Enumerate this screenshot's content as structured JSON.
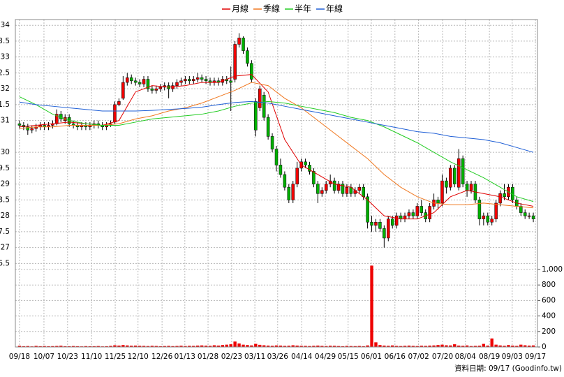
{
  "chart_data": {
    "type": "candlestick",
    "xlim": [
      -1,
      125
    ],
    "ylim": [
      23.87,
      34.18
    ],
    "y2lim": [
      0,
      4225
    ],
    "grid": true,
    "up_color": "#ee0000",
    "down_color": "#00b000",
    "yticks": [
      34,
      {
        "value": 33.5,
        "label": "3.5"
      },
      33,
      {
        "value": 32.5,
        "label": "2.5"
      },
      32,
      {
        "value": 31.5,
        "label": "1.5"
      },
      31,
      30,
      {
        "value": 29.5,
        "label": "9.5"
      },
      29,
      {
        "value": 28.5,
        "label": "8.5"
      },
      28,
      {
        "value": 27.5,
        "label": "7.5"
      },
      27,
      {
        "value": 26.5,
        "label": "6.5"
      }
    ],
    "y2ticks": [
      0,
      200,
      400,
      600,
      800,
      {
        "value": 1000,
        "label": "1,000"
      }
    ],
    "xticks": [
      {
        "value": 0,
        "label": "09/18"
      },
      {
        "value": 5.9,
        "label": "10/07"
      },
      {
        "value": 11.6,
        "label": "10/23"
      },
      {
        "value": 17.4,
        "label": "11/10"
      },
      {
        "value": 23.1,
        "label": "11/25"
      },
      {
        "value": 28.6,
        "label": "12/10"
      },
      {
        "value": 34.4,
        "label": "12/26"
      },
      {
        "value": 39.9,
        "label": "01/13"
      },
      {
        "value": 45.5,
        "label": "01/28"
      },
      {
        "value": 51.2,
        "label": "02/23"
      },
      {
        "value": 56.8,
        "label": "03/11"
      },
      {
        "value": 62.3,
        "label": "03/26"
      },
      {
        "value": 68.1,
        "label": "04/14"
      },
      {
        "value": 73.8,
        "label": "04/29"
      },
      {
        "value": 79.3,
        "label": "05/15"
      },
      {
        "value": 84.9,
        "label": "06/01"
      },
      {
        "value": 90.6,
        "label": "06/16"
      },
      {
        "value": 96.3,
        "label": "07/02"
      },
      {
        "value": 102.1,
        "label": "07/20"
      },
      {
        "value": 107.6,
        "label": "08/04"
      },
      {
        "value": 113.4,
        "label": "08/19"
      },
      {
        "value": 118.9,
        "label": "09/03"
      },
      {
        "value": 124.5,
        "label": "09/17"
      }
    ],
    "open": [
      30.9,
      30.85,
      30.8,
      30.7,
      30.75,
      30.8,
      30.85,
      30.8,
      30.85,
      30.9,
      31.2,
      31.0,
      31.1,
      30.9,
      30.85,
      30.8,
      30.85,
      30.8,
      30.85,
      30.9,
      30.85,
      30.8,
      30.85,
      30.95,
      31.5,
      31.7,
      32.2,
      32.35,
      32.25,
      32.2,
      32.15,
      32.3,
      32.0,
      31.95,
      32.0,
      32.05,
      32.1,
      32.0,
      32.1,
      32.2,
      32.25,
      32.3,
      32.25,
      32.3,
      32.35,
      32.3,
      32.25,
      32.2,
      32.25,
      32.2,
      32.3,
      32.25,
      32.3,
      33.4,
      33.6,
      33.2,
      32.8,
      31.6,
      31.4,
      31.8,
      31.1,
      30.5,
      30.1,
      29.6,
      29.3,
      28.9,
      28.5,
      29.0,
      29.5,
      29.7,
      29.6,
      29.4,
      29.0,
      28.7,
      28.8,
      29.0,
      29.1,
      28.8,
      29.0,
      28.7,
      28.9,
      28.7,
      28.8,
      28.9,
      28.6,
      27.8,
      27.7,
      27.8,
      27.6,
      27.3,
      27.9,
      27.7,
      28.0,
      27.9,
      28.0,
      28.1,
      28.0,
      28.3,
      28.1,
      27.9,
      28.3,
      28.5,
      28.4,
      29.1,
      28.9,
      29.5,
      28.9,
      29.8,
      29.0,
      28.8,
      29.0,
      28.5,
      27.9,
      28.0,
      27.8,
      27.9,
      28.4,
      28.7,
      28.6,
      28.9,
      28.5,
      28.3,
      28.1,
      28.0,
      28.0
    ],
    "high": [
      31.0,
      30.95,
      30.9,
      30.85,
      30.9,
      30.95,
      30.95,
      30.95,
      31.0,
      31.35,
      31.3,
      31.2,
      31.2,
      31.0,
      30.95,
      30.95,
      30.95,
      30.95,
      31.0,
      31.0,
      30.95,
      30.95,
      31.0,
      31.6,
      31.7,
      32.4,
      32.5,
      32.45,
      32.35,
      32.3,
      32.4,
      32.4,
      32.1,
      32.1,
      32.15,
      32.2,
      32.2,
      32.2,
      32.3,
      32.35,
      32.4,
      32.4,
      32.4,
      32.5,
      32.45,
      32.4,
      32.35,
      32.35,
      32.35,
      32.4,
      32.4,
      32.7,
      33.5,
      33.75,
      33.65,
      33.3,
      32.9,
      31.7,
      32.1,
      31.9,
      31.2,
      30.6,
      30.2,
      29.8,
      29.4,
      29.0,
      29.1,
      29.7,
      29.8,
      29.8,
      29.7,
      29.5,
      29.1,
      28.9,
      29.1,
      29.3,
      29.2,
      29.1,
      29.1,
      29.0,
      29.0,
      28.9,
      29.0,
      29.0,
      28.7,
      28.0,
      27.9,
      27.9,
      27.7,
      28.0,
      28.0,
      28.1,
      28.1,
      28.1,
      28.2,
      28.2,
      28.4,
      28.5,
      28.2,
      28.4,
      28.7,
      28.6,
      29.3,
      29.2,
      29.6,
      29.6,
      30.1,
      29.9,
      29.1,
      29.1,
      29.1,
      28.6,
      28.1,
      28.1,
      28.0,
      28.5,
      28.8,
      29.0,
      29.0,
      29.0,
      28.6,
      28.4,
      28.2,
      28.1,
      28.1
    ],
    "low": [
      30.75,
      30.7,
      30.55,
      30.6,
      30.65,
      30.7,
      30.7,
      30.7,
      30.75,
      30.85,
      30.95,
      30.9,
      30.8,
      30.75,
      30.7,
      30.7,
      30.7,
      30.7,
      30.75,
      30.75,
      30.7,
      30.7,
      30.8,
      30.9,
      31.45,
      31.65,
      32.1,
      32.15,
      32.1,
      32.05,
      32.05,
      31.9,
      31.85,
      31.85,
      31.9,
      31.95,
      31.7,
      31.9,
      32.0,
      32.1,
      32.15,
      32.15,
      32.15,
      32.2,
      32.2,
      32.15,
      32.1,
      32.1,
      32.1,
      32.1,
      32.15,
      31.3,
      32.2,
      33.3,
      33.1,
      32.7,
      32.2,
      30.5,
      31.3,
      31.0,
      30.4,
      30.0,
      29.4,
      29.2,
      28.8,
      28.4,
      28.4,
      28.9,
      29.4,
      29.5,
      29.3,
      28.9,
      28.4,
      28.6,
      28.7,
      28.9,
      28.7,
      28.7,
      28.6,
      28.6,
      28.6,
      28.6,
      28.7,
      28.5,
      27.6,
      27.5,
      27.5,
      27.5,
      27.0,
      27.2,
      27.6,
      27.6,
      27.8,
      27.8,
      27.9,
      27.9,
      27.9,
      28.0,
      27.8,
      27.8,
      28.2,
      28.2,
      28.3,
      28.7,
      28.8,
      28.9,
      28.8,
      28.9,
      28.6,
      28.7,
      28.4,
      27.7,
      27.7,
      27.7,
      27.7,
      27.8,
      28.3,
      28.5,
      28.5,
      28.4,
      28.2,
      28.0,
      27.9,
      27.9,
      27.8
    ],
    "close": [
      30.85,
      30.8,
      30.7,
      30.75,
      30.8,
      30.85,
      30.8,
      30.85,
      30.9,
      31.2,
      31.05,
      31.1,
      30.9,
      30.85,
      30.8,
      30.85,
      30.8,
      30.85,
      30.9,
      30.85,
      30.8,
      30.85,
      30.9,
      31.5,
      31.6,
      32.2,
      32.35,
      32.25,
      32.2,
      32.15,
      32.3,
      32.0,
      31.95,
      32.0,
      32.05,
      32.1,
      32.0,
      32.1,
      32.2,
      32.25,
      32.3,
      32.25,
      32.3,
      32.35,
      32.3,
      32.25,
      32.2,
      32.25,
      32.2,
      32.3,
      32.25,
      32.2,
      33.4,
      33.6,
      33.2,
      32.8,
      32.3,
      30.7,
      32.0,
      31.1,
      30.5,
      30.1,
      29.6,
      29.3,
      28.9,
      28.5,
      29.0,
      29.5,
      29.7,
      29.6,
      29.4,
      29.0,
      28.7,
      28.8,
      29.0,
      29.1,
      28.8,
      29.0,
      28.7,
      28.9,
      28.7,
      28.8,
      28.9,
      28.6,
      27.8,
      27.7,
      27.8,
      27.6,
      27.3,
      27.9,
      27.7,
      28.0,
      27.9,
      28.0,
      28.1,
      28.0,
      28.3,
      28.1,
      27.9,
      28.3,
      28.5,
      28.4,
      29.1,
      28.9,
      29.5,
      29.0,
      29.8,
      29.0,
      28.8,
      29.0,
      28.5,
      27.9,
      28.0,
      27.8,
      27.9,
      28.4,
      28.7,
      28.6,
      28.9,
      28.5,
      28.3,
      28.1,
      28.0,
      28.0,
      27.9
    ],
    "moving_averages": [
      {
        "name": "月線",
        "color": "#e00000",
        "x": [
          0,
          4,
          8,
          12,
          16,
          20,
          24,
          28,
          32,
          36,
          40,
          44,
          48,
          52,
          56,
          60,
          64,
          68,
          72,
          76,
          80,
          84,
          88,
          92,
          96,
          100,
          104,
          108,
          112,
          116,
          120,
          124
        ],
        "values": [
          30.8,
          30.85,
          30.9,
          30.95,
          30.9,
          30.85,
          31.0,
          31.9,
          32.1,
          32.05,
          32.1,
          32.2,
          32.2,
          32.4,
          32.45,
          31.9,
          30.4,
          29.6,
          29.3,
          29.0,
          28.9,
          28.5,
          28.0,
          27.9,
          27.9,
          28.1,
          28.6,
          28.8,
          28.7,
          28.6,
          28.4,
          28.3
        ]
      },
      {
        "name": "季線",
        "color": "#f07820",
        "x": [
          0,
          4,
          8,
          12,
          16,
          20,
          24,
          28,
          32,
          36,
          40,
          44,
          48,
          52,
          56,
          60,
          64,
          68,
          72,
          76,
          80,
          84,
          88,
          92,
          96,
          100,
          104,
          108,
          112,
          116,
          120,
          124
        ],
        "values": [
          30.75,
          30.8,
          30.8,
          30.85,
          30.85,
          30.85,
          30.9,
          31.05,
          31.15,
          31.3,
          31.4,
          31.55,
          31.75,
          31.95,
          32.2,
          32.1,
          31.7,
          31.4,
          31.0,
          30.6,
          30.2,
          29.8,
          29.3,
          28.9,
          28.6,
          28.4,
          28.35,
          28.35,
          28.4,
          28.35,
          28.3,
          28.25
        ]
      },
      {
        "name": "半年",
        "color": "#22cc22",
        "x": [
          0,
          4,
          8,
          12,
          16,
          20,
          24,
          28,
          32,
          36,
          40,
          44,
          48,
          52,
          56,
          60,
          64,
          68,
          72,
          76,
          80,
          84,
          88,
          92,
          96,
          100,
          104,
          108,
          112,
          116,
          120,
          124
        ],
        "values": [
          31.75,
          31.5,
          31.2,
          31.0,
          30.9,
          30.85,
          30.85,
          30.95,
          31.05,
          31.1,
          31.15,
          31.2,
          31.3,
          31.45,
          31.55,
          31.6,
          31.55,
          31.45,
          31.35,
          31.25,
          31.1,
          31.0,
          30.8,
          30.55,
          30.3,
          30.0,
          29.7,
          29.45,
          29.2,
          28.9,
          28.6,
          28.45
        ]
      },
      {
        "name": "年線",
        "color": "#1f5fd6",
        "x": [
          0,
          4,
          8,
          12,
          16,
          20,
          24,
          28,
          32,
          36,
          40,
          44,
          48,
          52,
          56,
          60,
          64,
          68,
          72,
          76,
          80,
          84,
          88,
          92,
          96,
          100,
          104,
          108,
          112,
          116,
          120,
          124
        ],
        "values": [
          31.58,
          31.5,
          31.45,
          31.4,
          31.35,
          31.3,
          31.3,
          31.3,
          31.32,
          31.35,
          31.38,
          31.42,
          31.5,
          31.57,
          31.6,
          31.55,
          31.45,
          31.35,
          31.25,
          31.15,
          31.05,
          30.95,
          30.85,
          30.75,
          30.65,
          30.6,
          30.5,
          30.45,
          30.4,
          30.3,
          30.15,
          30.0
        ]
      }
    ],
    "volume": {
      "color": "#ee0000",
      "axis": "y2",
      "values": [
        15,
        10,
        12,
        8,
        14,
        10,
        12,
        9,
        11,
        13,
        16,
        10,
        9,
        12,
        10,
        8,
        11,
        9,
        10,
        12,
        8,
        10,
        14,
        22,
        18,
        25,
        20,
        16,
        18,
        15,
        14,
        12,
        15,
        13,
        10,
        12,
        14,
        11,
        13,
        16,
        12,
        15,
        14,
        18,
        20,
        17,
        15,
        22,
        18,
        25,
        30,
        35,
        70,
        45,
        30,
        25,
        20,
        40,
        28,
        22,
        18,
        15,
        20,
        18,
        14,
        16,
        22,
        18,
        15,
        14,
        12,
        15,
        18,
        14,
        12,
        16,
        15,
        12,
        10,
        14,
        12,
        11,
        13,
        10,
        20,
        1050,
        60,
        25,
        18,
        15,
        20,
        14,
        12,
        15,
        18,
        14,
        12,
        16,
        14,
        18,
        20,
        25,
        30,
        22,
        20,
        35,
        18,
        15,
        20,
        12,
        14,
        16,
        40,
        18,
        110,
        30,
        20,
        15,
        25,
        18,
        14,
        30,
        22,
        18,
        20
      ]
    },
    "footnote": "資料日期: 09/17 (Goodinfo.tw)"
  }
}
